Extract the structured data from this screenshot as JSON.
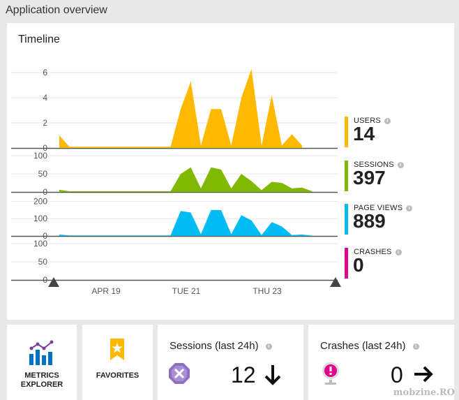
{
  "page": {
    "title": "Application overview"
  },
  "timeline": {
    "title": "Timeline",
    "x_tick_labels": [
      "APR 19",
      "TUE 21",
      "THU 23"
    ]
  },
  "chart_data": {
    "type": "area",
    "title": "Timeline",
    "x_ticks": [
      "APR 19",
      "TUE 21",
      "THU 23"
    ],
    "panels": [
      {
        "name": "USERS",
        "color": "#ffb900",
        "y_ticks": [
          0,
          2,
          4,
          6
        ],
        "ylim": [
          0,
          6.5
        ],
        "points": [
          [
            0,
            1
          ],
          [
            1,
            0.1
          ],
          [
            2,
            0.1
          ],
          [
            3,
            0.1
          ],
          [
            4,
            0.1
          ],
          [
            5,
            0.1
          ],
          [
            6,
            0.1
          ],
          [
            7,
            0.1
          ],
          [
            8,
            0.1
          ],
          [
            9,
            0.1
          ],
          [
            10,
            0.1
          ],
          [
            11,
            0.1
          ],
          [
            12,
            3.1
          ],
          [
            13,
            5.3
          ],
          [
            14,
            0.2
          ],
          [
            15,
            3.1
          ],
          [
            16,
            3.1
          ],
          [
            17,
            0.2
          ],
          [
            18,
            4
          ],
          [
            19,
            6.3
          ],
          [
            20,
            0.2
          ],
          [
            21,
            4.2
          ],
          [
            22,
            0.2
          ],
          [
            23,
            1.1
          ],
          [
            24,
            0.2
          ]
        ]
      },
      {
        "name": "SESSIONS",
        "color": "#7fba00",
        "y_ticks": [
          0,
          50,
          100
        ],
        "ylim": [
          0,
          110
        ],
        "points": [
          [
            0,
            6
          ],
          [
            1,
            2
          ],
          [
            2,
            2
          ],
          [
            3,
            2
          ],
          [
            4,
            2
          ],
          [
            5,
            2
          ],
          [
            6,
            2
          ],
          [
            7,
            2
          ],
          [
            8,
            2
          ],
          [
            9,
            2
          ],
          [
            10,
            2
          ],
          [
            11,
            2
          ],
          [
            12,
            50
          ],
          [
            13,
            68
          ],
          [
            14,
            10
          ],
          [
            15,
            68
          ],
          [
            16,
            62
          ],
          [
            17,
            10
          ],
          [
            18,
            50
          ],
          [
            19,
            30
          ],
          [
            20,
            5
          ],
          [
            21,
            28
          ],
          [
            22,
            25
          ],
          [
            23,
            10
          ],
          [
            24,
            12
          ],
          [
            25,
            2
          ]
        ]
      },
      {
        "name": "PAGE VIEWS",
        "color": "#00bcf2",
        "y_ticks": [
          0,
          100,
          200
        ],
        "ylim": [
          0,
          230
        ],
        "points": [
          [
            0,
            8
          ],
          [
            1,
            3
          ],
          [
            2,
            3
          ],
          [
            3,
            3
          ],
          [
            4,
            3
          ],
          [
            5,
            3
          ],
          [
            6,
            3
          ],
          [
            7,
            3
          ],
          [
            8,
            3
          ],
          [
            9,
            3
          ],
          [
            10,
            3
          ],
          [
            11,
            3
          ],
          [
            12,
            145
          ],
          [
            13,
            135
          ],
          [
            14,
            10
          ],
          [
            15,
            150
          ],
          [
            16,
            150
          ],
          [
            17,
            10
          ],
          [
            18,
            120
          ],
          [
            19,
            90
          ],
          [
            20,
            5
          ],
          [
            21,
            80
          ],
          [
            22,
            55
          ],
          [
            23,
            5
          ],
          [
            24,
            8
          ],
          [
            25,
            2
          ]
        ]
      },
      {
        "name": "CRASHES",
        "color": "#e3008c",
        "y_ticks": [
          0,
          50,
          100
        ],
        "ylim": [
          0,
          110
        ],
        "points": []
      }
    ]
  },
  "metrics": [
    {
      "label": "USERS",
      "value": "14",
      "color": "#ffb900"
    },
    {
      "label": "SESSIONS",
      "value": "397",
      "color": "#7fba00"
    },
    {
      "label": "PAGE VIEWS",
      "value": "889",
      "color": "#00bcf2"
    },
    {
      "label": "CRASHES",
      "value": "0",
      "color": "#e3008c"
    }
  ],
  "tiles": {
    "metrics_explorer": {
      "line1": "METRICS",
      "line2": "EXPLORER",
      "icon": "bar-chart-icon"
    },
    "favorites": {
      "label": "FAVORITES",
      "icon": "star-bookmark-icon"
    },
    "sessions": {
      "title": "Sessions (last 24h)",
      "value": "12",
      "trend": "down-arrow-icon",
      "icon_color": "#8c6fbf"
    },
    "crashes": {
      "title": "Crashes (last 24h)",
      "value": "0",
      "trend": "right-arrow-icon",
      "icon_color": "#e3008c"
    }
  },
  "watermark": "mobzine.RO"
}
